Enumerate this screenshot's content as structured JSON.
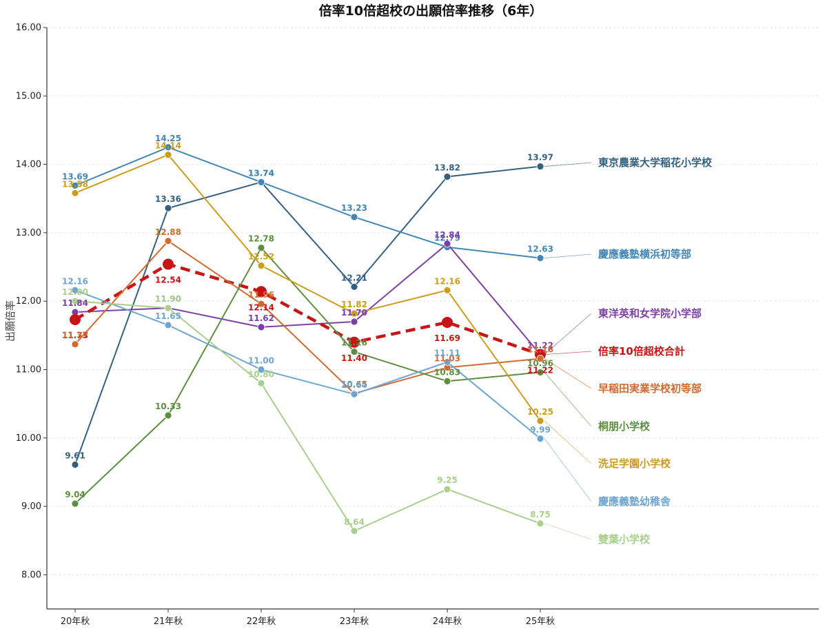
{
  "chart_data": {
    "type": "line",
    "title": "倍率10倍超校の出願倍率推移（6年）",
    "xlabel": "",
    "ylabel": "出願倍率",
    "categories": [
      "20年秋",
      "21年秋",
      "22年秋",
      "23年秋",
      "24年秋",
      "25年秋"
    ],
    "ylim": [
      7.5,
      16.0
    ],
    "yticks": [
      "8.00",
      "9.00",
      "10.00",
      "11.00",
      "12.00",
      "13.00",
      "14.00",
      "15.00",
      "16.00"
    ],
    "grid": true,
    "legend": "right (labels at line ends)",
    "series": [
      {
        "name": "東京農業大学稲花小学校",
        "color": "#34607f",
        "values": [
          9.61,
          13.36,
          13.74,
          12.21,
          13.82,
          13.97
        ]
      },
      {
        "name": "慶應義塾横浜初等部",
        "color": "#4286b4",
        "values": [
          13.69,
          14.25,
          13.74,
          13.23,
          12.79,
          12.63
        ]
      },
      {
        "name": "東洋英和女学院小学部",
        "color": "#7b3fa5",
        "values": [
          11.84,
          11.9,
          11.62,
          11.7,
          12.84,
          11.22
        ]
      },
      {
        "name": "倍率10倍超校合計",
        "color": "#c81414",
        "dashed": true,
        "values": [
          11.73,
          12.54,
          12.14,
          11.4,
          11.69,
          11.22
        ]
      },
      {
        "name": "早稲田実業学校初等部",
        "color": "#d06a2e",
        "values": [
          11.37,
          12.88,
          11.96,
          10.65,
          11.03,
          11.16
        ]
      },
      {
        "name": "桐朋小学校",
        "color": "#5c8e3d",
        "values": [
          9.04,
          10.33,
          12.78,
          11.26,
          10.83,
          10.96
        ]
      },
      {
        "name": "洗足学園小学校",
        "color": "#cc9c1c",
        "values": [
          13.58,
          14.14,
          12.52,
          11.82,
          12.16,
          10.25
        ]
      },
      {
        "name": "慶應義塾幼稚舎",
        "color": "#6ca5d2",
        "values": [
          12.16,
          11.65,
          11.0,
          10.64,
          11.11,
          9.99
        ]
      },
      {
        "name": "雙葉小学校",
        "color": "#a8cf8c",
        "values": [
          12.0,
          11.9,
          10.8,
          8.64,
          9.25,
          8.75
        ]
      }
    ]
  }
}
